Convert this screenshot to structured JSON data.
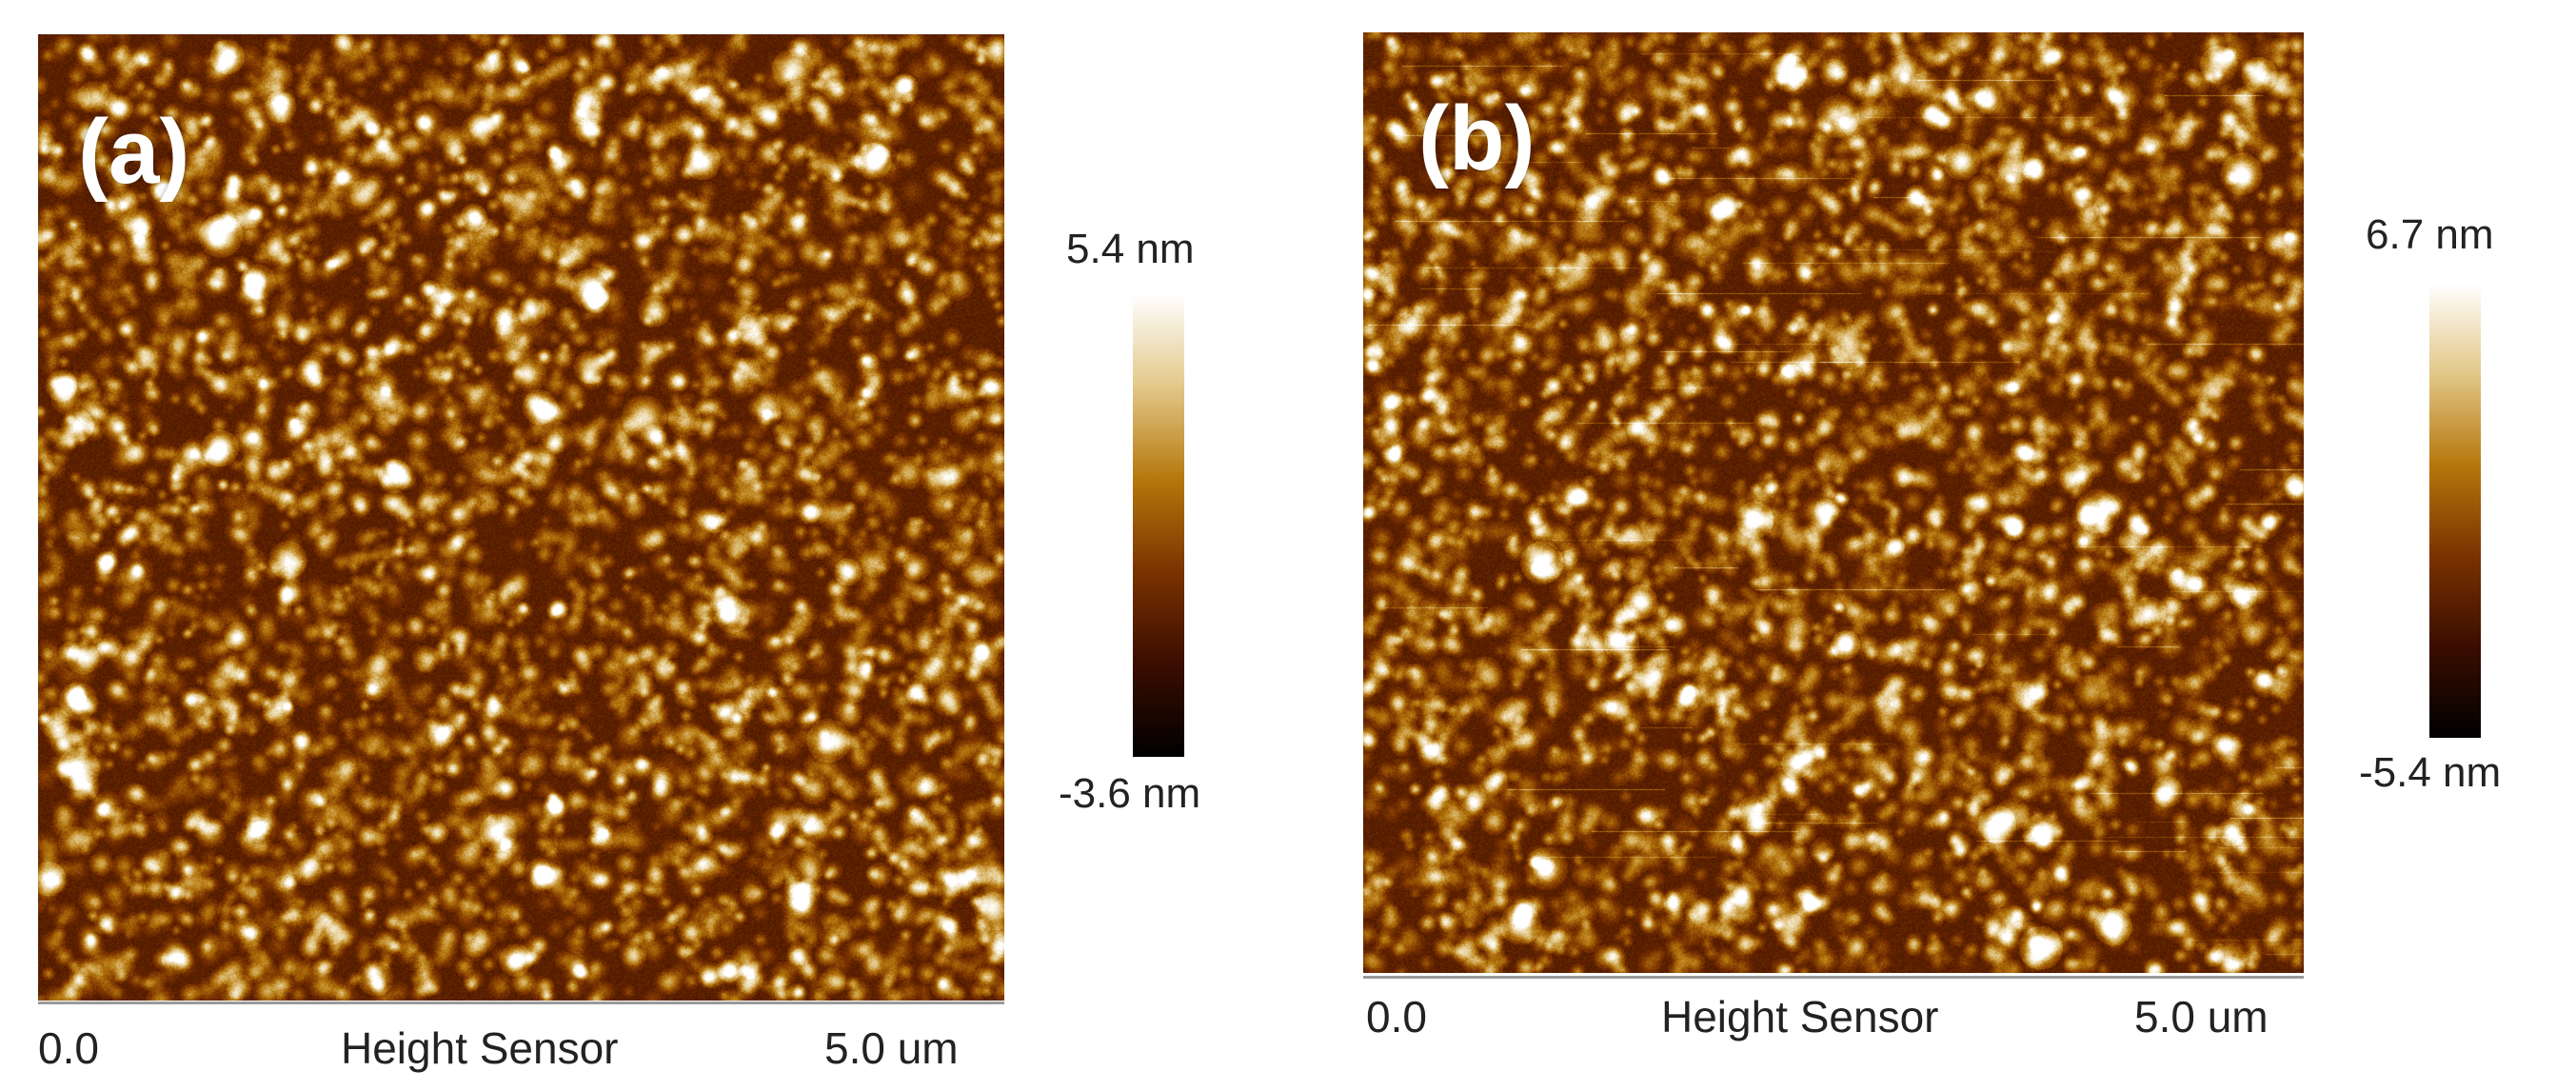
{
  "panels": [
    {
      "label": "(a)",
      "colorbar_max": "5.4 nm",
      "colorbar_min": "-3.6 nm",
      "x_start": "0.0",
      "channel": "Height Sensor",
      "x_end": "5.0 um"
    },
    {
      "label": "(b)",
      "colorbar_max": "6.7 nm",
      "colorbar_min": "-5.4 nm",
      "x_start": "0.0",
      "channel": "Height Sensor",
      "x_end": "5.0 um"
    }
  ],
  "colors": {
    "colormap": [
      "#000000",
      "#3a0d00",
      "#7a3200",
      "#b5770c",
      "#e2c787",
      "#ffffff"
    ]
  }
}
